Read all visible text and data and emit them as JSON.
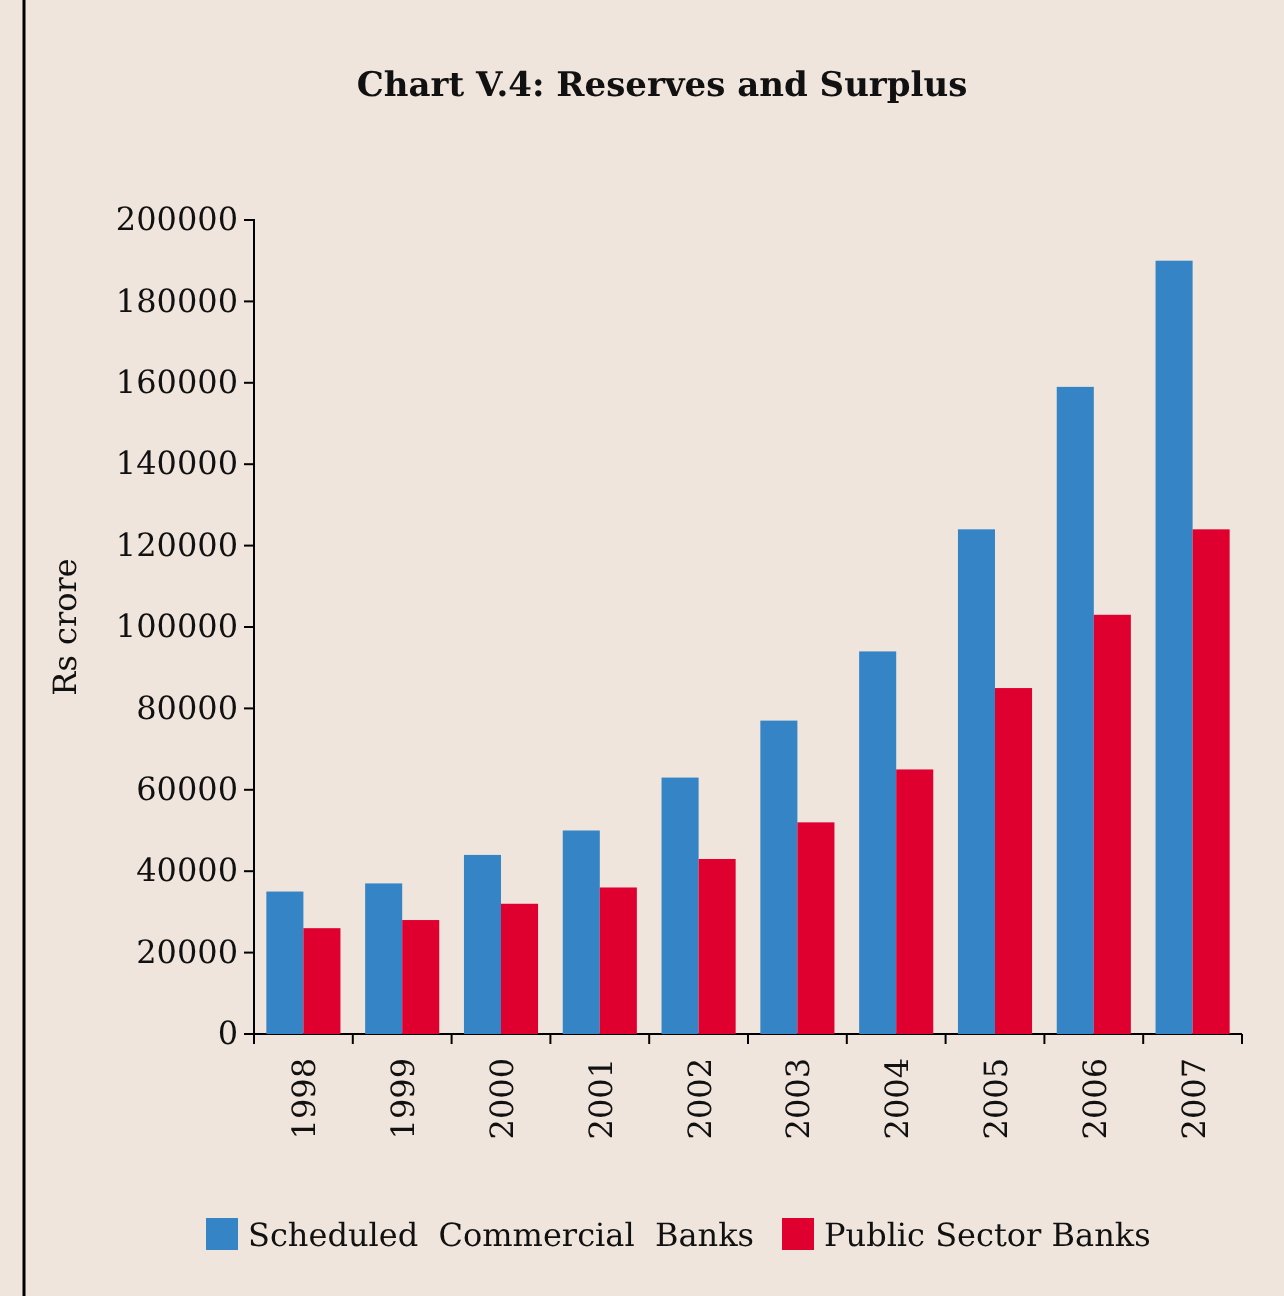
{
  "chart_data": {
    "type": "bar",
    "title": "Chart V.4: Reserves and Surplus",
    "ylabel": "Rs crore",
    "categories": [
      "1998",
      "1999",
      "2000",
      "2001",
      "2002",
      "2003",
      "2004",
      "2005",
      "2006",
      "2007"
    ],
    "series": [
      {
        "name": "Scheduled  Commercial  Banks",
        "color": "#3584c6",
        "values": [
          35000,
          37000,
          44000,
          50000,
          63000,
          77000,
          94000,
          124000,
          159000,
          190000
        ]
      },
      {
        "name": "Public Sector Banks",
        "color": "#e00030",
        "values": [
          26000,
          28000,
          32000,
          36000,
          43000,
          52000,
          65000,
          85000,
          103000,
          124000
        ]
      }
    ],
    "ylim": [
      0,
      200000
    ],
    "yticks": [
      0,
      20000,
      40000,
      60000,
      80000,
      100000,
      120000,
      140000,
      160000,
      180000,
      200000
    ],
    "grid": false,
    "legend": "bottom"
  }
}
